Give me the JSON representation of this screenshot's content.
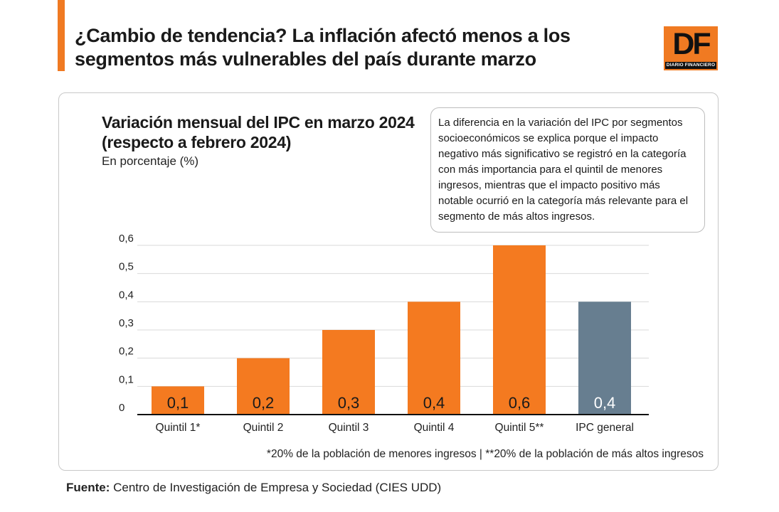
{
  "header": {
    "headline": "¿Cambio de tendencia? La inflación afectó menos a los segmentos más vulnerables del país durante marzo",
    "logo_mark": "DF",
    "logo_sub": "DIARIO FINANCIERO",
    "accent_color": "#f07a22"
  },
  "note": {
    "text": "La diferencia en la variación del IPC por segmentos socioeconómicos se explica porque el impacto negativo más significativo se registró en la categoría con más importancia para el quintil de menores ingresos, mientras que el impacto positivo más notable ocurrió en la categoría más relevante para el segmento de más altos ingresos."
  },
  "chart_data": {
    "type": "bar",
    "title": "Variación mensual del IPC en marzo 2024 (respecto a febrero 2024)",
    "subtitle": "En porcentaje (%)",
    "categories": [
      "Quintil 1*",
      "Quintil 2",
      "Quintil 3",
      "Quintil 4",
      "Quintil 5**",
      "IPC general"
    ],
    "values": [
      0.1,
      0.2,
      0.3,
      0.4,
      0.6,
      0.4
    ],
    "value_labels": [
      "0,1",
      "0,2",
      "0,3",
      "0,4",
      "0,6",
      "0,4"
    ],
    "bar_colors": [
      "#f47a20",
      "#f47a20",
      "#f47a20",
      "#f47a20",
      "#f47a20",
      "#677e90"
    ],
    "ylim": [
      0,
      0.6
    ],
    "yticks": [
      0,
      0.1,
      0.2,
      0.3,
      0.4,
      0.5,
      0.6
    ],
    "ytick_labels": [
      "0",
      "0,1",
      "0,2",
      "0,3",
      "0,4",
      "0,5",
      "0,6"
    ],
    "grid": true,
    "xlabel": "",
    "ylabel": ""
  },
  "footnote": "*20% de la población de menores ingresos | **20% de la población de más altos ingresos",
  "source": {
    "label": "Fuente:",
    "text": " Centro de Investigación de Empresa y Sociedad (CIES UDD)"
  }
}
